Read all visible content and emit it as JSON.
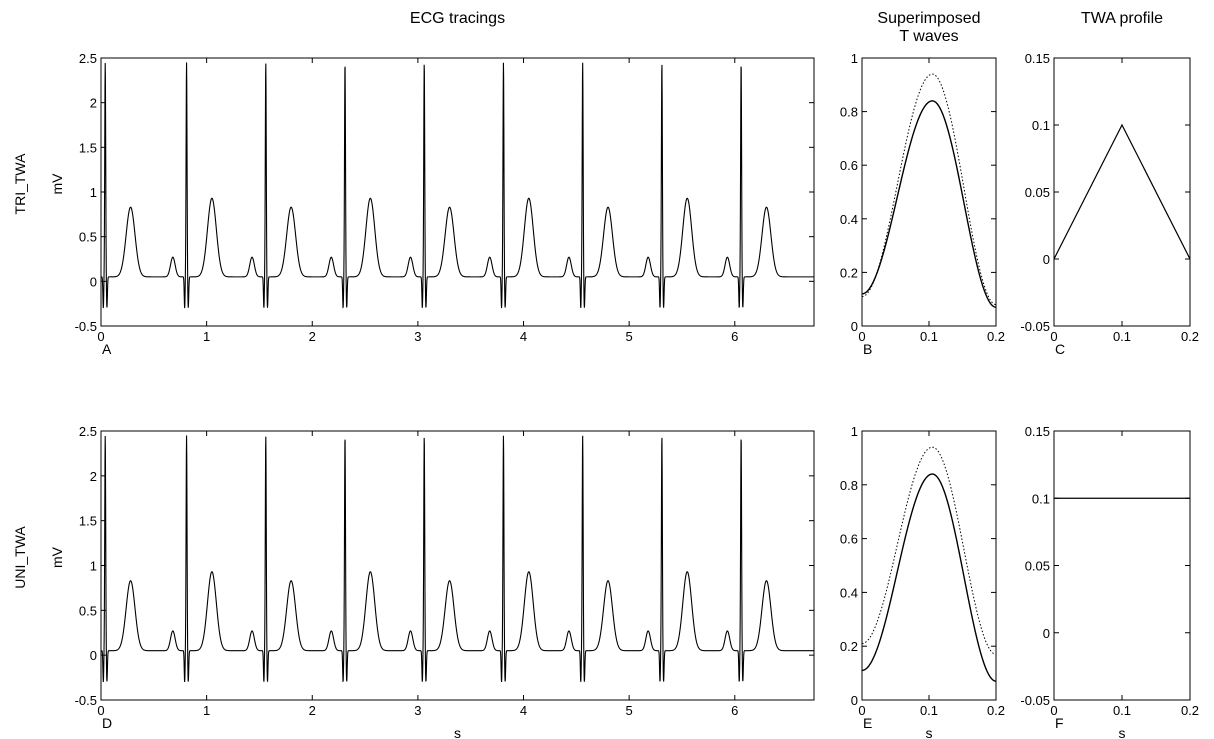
{
  "chart_data": [
    {
      "panel_label": "A",
      "type": "line",
      "title": "ECG tracings",
      "row_label": "TRI_TWA",
      "ylabel": "mV",
      "xlabel": "",
      "xlim": [
        0,
        6.75
      ],
      "ylim": [
        -0.5,
        2.5
      ],
      "xticks": [
        "0",
        "1",
        "2",
        "3",
        "4",
        "5",
        "6"
      ],
      "yticks": [
        "-0.5",
        "0",
        "0.5",
        "1",
        "1.5",
        "2",
        "2.5"
      ],
      "beat_times": [
        0.04,
        0.81,
        1.56,
        2.31,
        3.06,
        3.81,
        4.56,
        5.31,
        6.06
      ],
      "r_peak": 2.45,
      "s_trough": -0.3,
      "p_peak": 0.22,
      "t_peaks": [
        0.83,
        0.93,
        0.83,
        0.93,
        0.83,
        0.93,
        0.83,
        0.93,
        0.83
      ],
      "baseline": 0.05
    },
    {
      "panel_label": "B",
      "type": "line",
      "title": "Superimposed\nT waves",
      "xlabel": "",
      "xlim": [
        0,
        0.2
      ],
      "ylim": [
        0,
        1
      ],
      "xticks": [
        "0",
        "0.1",
        "0.2"
      ],
      "yticks": [
        "0",
        "0.2",
        "0.4",
        "0.6",
        "0.8",
        "1"
      ],
      "series": [
        {
          "style": "solid",
          "start": 0.12,
          "peak": 0.84,
          "end": 0.07,
          "peak_x": 0.105
        },
        {
          "style": "dotted",
          "start": 0.11,
          "peak": 0.94,
          "end": 0.08,
          "peak_x": 0.105
        }
      ]
    },
    {
      "panel_label": "C",
      "type": "line",
      "title": "TWA profile",
      "xlabel": "",
      "xlim": [
        0,
        0.2
      ],
      "ylim": [
        -0.05,
        0.15
      ],
      "xticks": [
        "0",
        "0.1",
        "0.2"
      ],
      "yticks": [
        "-0.05",
        "0",
        "0.05",
        "0.1",
        "0.15"
      ],
      "x": [
        0,
        0.1,
        0.2
      ],
      "y": [
        0,
        0.1,
        0
      ]
    },
    {
      "panel_label": "D",
      "type": "line",
      "row_label": "UNI_TWA",
      "ylabel": "mV",
      "xlabel": "s",
      "xlim": [
        0,
        6.75
      ],
      "ylim": [
        -0.5,
        2.5
      ],
      "xticks": [
        "0",
        "1",
        "2",
        "3",
        "4",
        "5",
        "6"
      ],
      "yticks": [
        "-0.5",
        "0",
        "0.5",
        "1",
        "1.5",
        "2",
        "2.5"
      ],
      "beat_times": [
        0.04,
        0.81,
        1.56,
        2.31,
        3.06,
        3.81,
        4.56,
        5.31,
        6.06
      ],
      "r_peak": 2.45,
      "s_trough": -0.3,
      "p_peak": 0.22,
      "t_peaks": [
        0.83,
        0.93,
        0.83,
        0.93,
        0.83,
        0.93,
        0.83,
        0.93,
        0.83
      ],
      "baseline": 0.05
    },
    {
      "panel_label": "E",
      "type": "line",
      "xlabel": "s",
      "xlim": [
        0,
        0.2
      ],
      "ylim": [
        0,
        1
      ],
      "xticks": [
        "0",
        "0.1",
        "0.2"
      ],
      "yticks": [
        "0",
        "0.2",
        "0.4",
        "0.6",
        "0.8",
        "1"
      ],
      "series": [
        {
          "style": "solid",
          "start": 0.11,
          "peak": 0.84,
          "end": 0.07,
          "peak_x": 0.105
        },
        {
          "style": "dotted",
          "start": 0.21,
          "peak": 0.94,
          "end": 0.17,
          "peak_x": 0.105
        }
      ]
    },
    {
      "panel_label": "F",
      "type": "line",
      "xlabel": "s",
      "xlim": [
        0,
        0.2
      ],
      "ylim": [
        -0.05,
        0.15
      ],
      "xticks": [
        "0",
        "0.1",
        "0.2"
      ],
      "yticks": [
        "-0.05",
        "0",
        "0.05",
        "0.1",
        "0.15"
      ],
      "x": [
        0,
        0.2
      ],
      "y": [
        0.1,
        0.1
      ]
    }
  ]
}
